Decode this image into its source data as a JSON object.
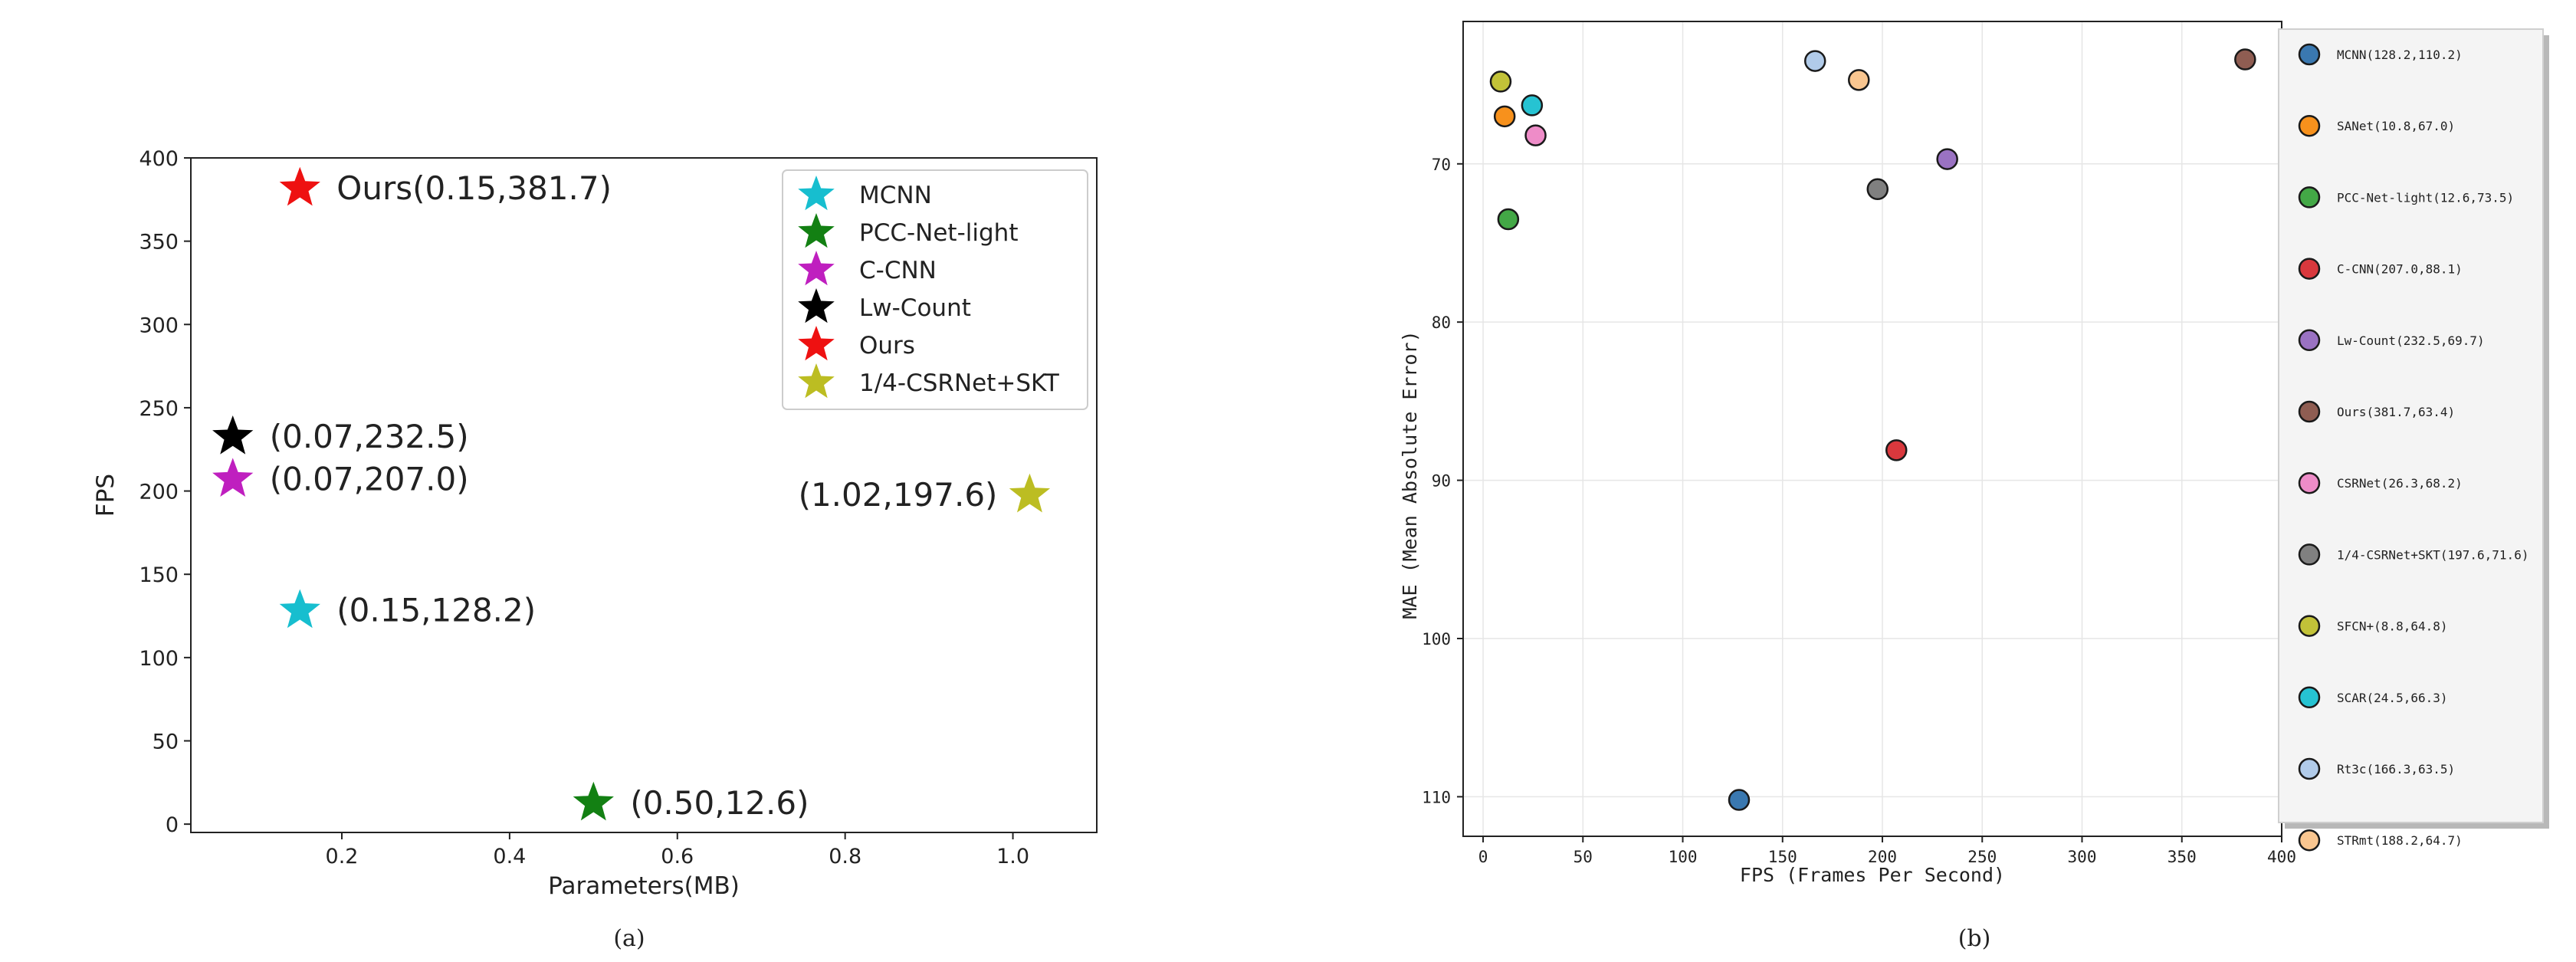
{
  "chart_data": [
    {
      "type": "scatter",
      "caption": "(a)",
      "xlabel": "Parameters(MB)",
      "ylabel": "FPS",
      "xlim": [
        0.02,
        1.1
      ],
      "ylim": [
        -5,
        400
      ],
      "xticks": [
        0.2,
        0.4,
        0.6,
        0.8,
        1.0
      ],
      "yticks": [
        0,
        50,
        100,
        150,
        200,
        250,
        300,
        350,
        400
      ],
      "grid": false,
      "marker": "star",
      "legend": "top-right",
      "points": [
        {
          "name": "MCNN",
          "x": 0.15,
          "y": 128.2,
          "color": "#17becf",
          "annotation": "(0.15,128.2)",
          "label_side": "right"
        },
        {
          "name": "PCC-Net-light",
          "x": 0.5,
          "y": 12.6,
          "color": "#138013",
          "annotation": "(0.50,12.6)",
          "label_side": "right"
        },
        {
          "name": "C-CNN",
          "x": 0.07,
          "y": 207.0,
          "color": "#bf1fbf",
          "annotation": "(0.07,207.0)",
          "label_side": "right"
        },
        {
          "name": "Lw-Count",
          "x": 0.07,
          "y": 232.5,
          "color": "#000000",
          "annotation": "(0.07,232.5)",
          "label_side": "right"
        },
        {
          "name": "Ours",
          "x": 0.15,
          "y": 381.7,
          "color": "#ee1111",
          "annotation": "Ours(0.15,381.7)",
          "label_side": "right"
        },
        {
          "name": "1/4-CSRNet+SKT",
          "x": 1.02,
          "y": 197.6,
          "color": "#bcbd22",
          "annotation": "(1.02,197.6)",
          "label_side": "left"
        }
      ]
    },
    {
      "type": "scatter",
      "caption": "(b)",
      "xlabel": "FPS (Frames Per Second)",
      "ylabel": "MAE (Mean Absolute Error)",
      "xlim": [
        -10,
        400
      ],
      "ylim": [
        61,
        112.5
      ],
      "y_inverted": true,
      "xticks": [
        0,
        50,
        100,
        150,
        200,
        250,
        300,
        350,
        400
      ],
      "yticks": [
        70,
        80,
        90,
        100,
        110
      ],
      "grid": true,
      "marker": "circle",
      "legend": "right (outside)",
      "points": [
        {
          "name": "MCNN",
          "x": 128.2,
          "y": 110.2,
          "color": "#3a78b0",
          "legend": "MCNN(128.2,110.2)"
        },
        {
          "name": "SANet",
          "x": 10.8,
          "y": 67.0,
          "color": "#f7911c",
          "legend": "SANet(10.8,67.0)"
        },
        {
          "name": "PCC-Net-light",
          "x": 12.6,
          "y": 73.5,
          "color": "#43a846",
          "legend": "PCC-Net-light(12.6,73.5)"
        },
        {
          "name": "C-CNN",
          "x": 207.0,
          "y": 88.1,
          "color": "#d9383d",
          "legend": "C-CNN(207.0,88.1)"
        },
        {
          "name": "Lw-Count",
          "x": 232.5,
          "y": 69.7,
          "color": "#9a72c2",
          "legend": "Lw-Count(232.5,69.7)"
        },
        {
          "name": "Ours",
          "x": 381.7,
          "y": 63.4,
          "color": "#8f5d52",
          "legend": "Ours(381.7,63.4)"
        },
        {
          "name": "CSRNet",
          "x": 26.3,
          "y": 68.2,
          "color": "#ee8cc8",
          "legend": "CSRNet(26.3,68.2)"
        },
        {
          "name": "1/4-CSRNet+SKT",
          "x": 197.6,
          "y": 71.6,
          "color": "#808080",
          "legend": "1/4-CSRNet+SKT(197.6,71.6)"
        },
        {
          "name": "SFCN+",
          "x": 8.8,
          "y": 64.8,
          "color": "#c2c238",
          "legend": "SFCN+(8.8,64.8)"
        },
        {
          "name": "SCAR",
          "x": 24.5,
          "y": 66.3,
          "color": "#26c3d2",
          "legend": "SCAR(24.5,66.3)"
        },
        {
          "name": "Rt3c",
          "x": 166.3,
          "y": 63.5,
          "color": "#b1cbe9",
          "legend": "Rt3c(166.3,63.5)"
        },
        {
          "name": "STRmt",
          "x": 188.2,
          "y": 64.7,
          "color": "#f9c690",
          "legend": "STRmt(188.2,64.7)"
        }
      ]
    }
  ]
}
